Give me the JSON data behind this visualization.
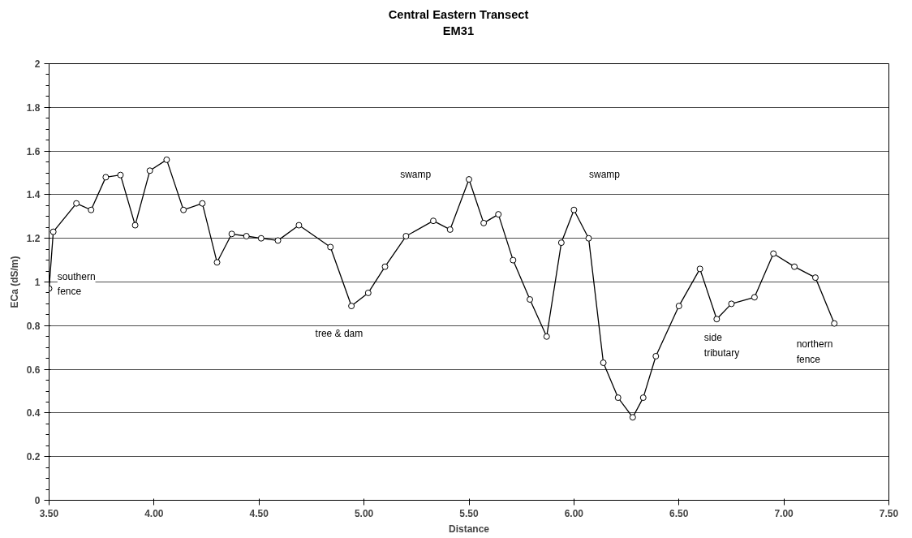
{
  "chart_data": {
    "type": "line",
    "title": "Central Eastern Transect\nEM31",
    "xlabel": "Distance",
    "ylabel": "ECa (dS/m)",
    "x": [
      3.5,
      3.52,
      3.63,
      3.7,
      3.77,
      3.84,
      3.91,
      3.98,
      4.06,
      4.14,
      4.23,
      4.3,
      4.37,
      4.44,
      4.51,
      4.59,
      4.69,
      4.84,
      4.94,
      5.02,
      5.1,
      5.2,
      5.33,
      5.41,
      5.5,
      5.57,
      5.64,
      5.71,
      5.79,
      5.87,
      5.94,
      6.0,
      6.07,
      6.14,
      6.21,
      6.28,
      6.33,
      6.39,
      6.5,
      6.6,
      6.68,
      6.75,
      6.86,
      6.95,
      7.05,
      7.15,
      7.24
    ],
    "series": [
      {
        "color": "#000000",
        "values": [
          0.97,
          1.23,
          1.36,
          1.33,
          1.48,
          1.49,
          1.26,
          1.51,
          1.56,
          1.33,
          1.36,
          1.09,
          1.22,
          1.21,
          1.2,
          1.19,
          1.26,
          1.16,
          0.89,
          0.95,
          1.07,
          1.21,
          1.28,
          1.24,
          1.47,
          1.27,
          1.31,
          1.1,
          0.92,
          0.75,
          1.18,
          1.33,
          1.2,
          0.63,
          0.47,
          0.38,
          0.47,
          0.66,
          0.89,
          1.06,
          0.83,
          0.9,
          0.93,
          1.13,
          1.07,
          1.02,
          0.81
        ]
      }
    ],
    "xlim": [
      3.5,
      7.5
    ],
    "xticks": [
      {
        "value": 3.5,
        "label": "3.50"
      },
      {
        "value": 4.0,
        "label": "4.00"
      },
      {
        "value": 4.5,
        "label": "4.50"
      },
      {
        "value": 5.0,
        "label": "5.00"
      },
      {
        "value": 5.5,
        "label": "5.50"
      },
      {
        "value": 6.0,
        "label": "6.00"
      },
      {
        "value": 6.5,
        "label": "6.50"
      },
      {
        "value": 7.0,
        "label": "7.00"
      },
      {
        "value": 7.5,
        "label": "7.50"
      }
    ],
    "ylim": [
      0,
      2
    ],
    "yticks": [
      0,
      0.2,
      0.4,
      0.6,
      0.8,
      1,
      1.2,
      1.4,
      1.6,
      1.8,
      2
    ],
    "grid": "y",
    "marker": "circle",
    "line_style": "solid",
    "annotations": [
      "southern\nfence",
      "tree & dam",
      "swamp",
      "swamp",
      "side\ntributary",
      "northern\nfence"
    ]
  }
}
